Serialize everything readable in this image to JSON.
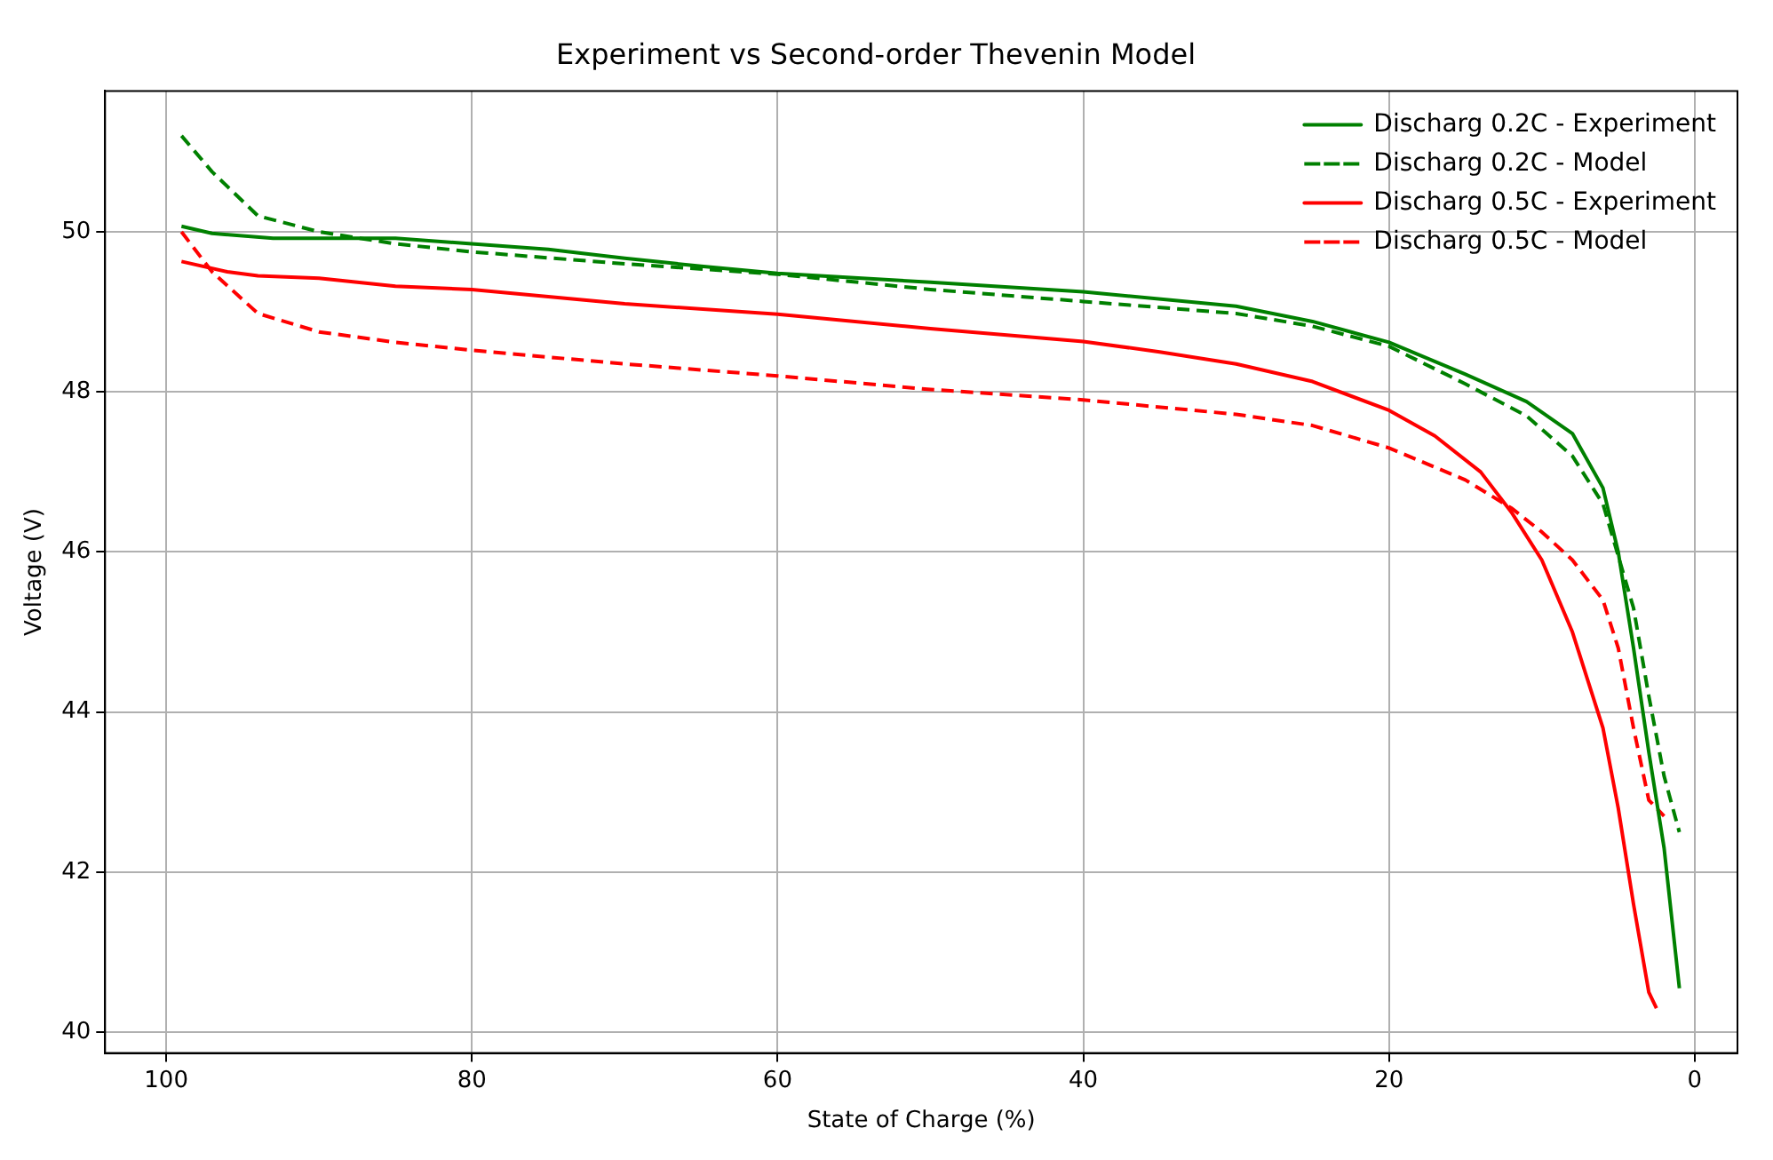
{
  "chart_data": {
    "type": "line",
    "title": "Experiment vs Second-order Thevenin Model",
    "xlabel": "State of Charge (%)",
    "ylabel": "Voltage (V)",
    "xlim": [
      104,
      -2.8
    ],
    "xticks": [
      100,
      80,
      60,
      40,
      20,
      0
    ],
    "ylim": [
      39.74,
      51.76
    ],
    "yticks": [
      40,
      42,
      44,
      46,
      48,
      50
    ],
    "grid": true,
    "legend": "top right",
    "marker": "none",
    "series": [
      {
        "name": "Discharg 0.2C - Experiment",
        "color": "#008000",
        "line_style": "solid",
        "x": [
          99,
          97,
          93,
          85,
          80,
          75,
          70,
          65,
          60,
          50,
          40,
          30,
          25,
          20,
          15,
          11,
          8,
          6,
          5,
          4,
          3,
          2,
          1
        ],
        "values": [
          50.07,
          49.98,
          49.92,
          49.92,
          49.85,
          49.78,
          49.67,
          49.57,
          49.48,
          49.37,
          49.25,
          49.07,
          48.88,
          48.62,
          48.22,
          47.88,
          47.48,
          46.8,
          46.0,
          44.8,
          43.5,
          42.3,
          40.55
        ]
      },
      {
        "name": "Discharg 0.2C - Model",
        "color": "#008000",
        "line_style": "dashed",
        "x": [
          99,
          97,
          94,
          90,
          85,
          80,
          70,
          60,
          50,
          40,
          30,
          25,
          20,
          15,
          11,
          8,
          6,
          4,
          3,
          2,
          1
        ],
        "values": [
          51.2,
          50.75,
          50.2,
          50.0,
          49.85,
          49.75,
          49.6,
          49.47,
          49.28,
          49.13,
          48.98,
          48.82,
          48.57,
          48.1,
          47.7,
          47.2,
          46.6,
          45.3,
          44.2,
          43.2,
          42.5
        ]
      },
      {
        "name": "Discharg 0.5C - Experiment",
        "color": "#ff0000",
        "line_style": "solid",
        "x": [
          99,
          96,
          94,
          90,
          85,
          80,
          70,
          60,
          50,
          40,
          35,
          30,
          25,
          20,
          17,
          14,
          12,
          10,
          8,
          6,
          5,
          4,
          3,
          2.5
        ],
        "values": [
          49.63,
          49.5,
          49.45,
          49.42,
          49.32,
          49.28,
          49.1,
          48.97,
          48.79,
          48.63,
          48.5,
          48.35,
          48.13,
          47.77,
          47.45,
          47.0,
          46.5,
          45.9,
          45.0,
          43.8,
          42.8,
          41.6,
          40.5,
          40.3
        ]
      },
      {
        "name": "Discharg 0.5C - Model",
        "color": "#ff0000",
        "line_style": "dashed",
        "x": [
          99,
          97,
          94,
          90,
          85,
          80,
          70,
          60,
          50,
          40,
          30,
          25,
          20,
          15,
          12,
          10,
          8,
          6,
          5,
          4,
          3,
          2
        ],
        "values": [
          50.0,
          49.5,
          48.98,
          48.75,
          48.62,
          48.52,
          48.35,
          48.2,
          48.03,
          47.9,
          47.72,
          47.58,
          47.3,
          46.9,
          46.55,
          46.25,
          45.9,
          45.4,
          44.8,
          43.8,
          42.9,
          42.7
        ]
      }
    ]
  }
}
